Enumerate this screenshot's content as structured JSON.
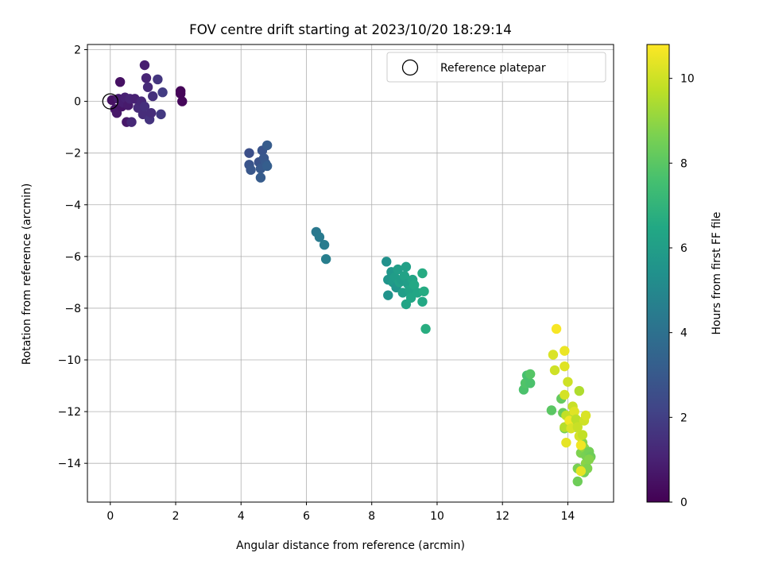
{
  "chart_data": {
    "type": "scatter",
    "title": "FOV centre drift starting at 2023/10/20 18:29:14",
    "xlabel": "Angular distance from reference (arcmin)",
    "ylabel": "Rotation from reference (arcmin)",
    "colorbar_label": "Hours from first FF file",
    "xlim": [
      -0.7,
      15.4
    ],
    "ylim": [
      -15.5,
      2.2
    ],
    "xticks": [
      0,
      2,
      4,
      6,
      8,
      10,
      12,
      14
    ],
    "yticks": [
      2,
      0,
      -2,
      -4,
      -6,
      -8,
      -10,
      -12,
      -14
    ],
    "colorbar_range": [
      0,
      10.8
    ],
    "colorbar_ticks": [
      0,
      2,
      4,
      6,
      8,
      10
    ],
    "colormap": "viridis",
    "grid": true,
    "legend": {
      "position": "top-right",
      "entries": [
        {
          "label": "Reference platepar",
          "marker": "open-circle"
        }
      ]
    },
    "reference_point": {
      "x": 0,
      "y": 0
    },
    "points": [
      {
        "x": 0.05,
        "y": 0.05,
        "c": 0.5
      },
      {
        "x": 0.15,
        "y": -0.3,
        "c": 0.6
      },
      {
        "x": 0.2,
        "y": -0.45,
        "c": 0.7
      },
      {
        "x": 0.25,
        "y": 0.1,
        "c": 0.8
      },
      {
        "x": 0.3,
        "y": 0.75,
        "c": 0.5
      },
      {
        "x": 0.35,
        "y": -0.2,
        "c": 0.6
      },
      {
        "x": 0.4,
        "y": -0.05,
        "c": 0.9
      },
      {
        "x": 0.45,
        "y": 0.15,
        "c": 1.0
      },
      {
        "x": 0.5,
        "y": -0.8,
        "c": 0.7
      },
      {
        "x": 0.55,
        "y": -0.15,
        "c": 0.8
      },
      {
        "x": 0.6,
        "y": 0.1,
        "c": 1.1
      },
      {
        "x": 0.65,
        "y": -0.8,
        "c": 1.2
      },
      {
        "x": 0.75,
        "y": 0.1,
        "c": 1.0
      },
      {
        "x": 0.85,
        "y": -0.25,
        "c": 1.3
      },
      {
        "x": 0.95,
        "y": 0.0,
        "c": 1.2
      },
      {
        "x": 1.0,
        "y": -0.5,
        "c": 1.4
      },
      {
        "x": 1.05,
        "y": 1.4,
        "c": 0.9
      },
      {
        "x": 1.05,
        "y": -0.2,
        "c": 1.5
      },
      {
        "x": 1.1,
        "y": 0.9,
        "c": 1.1
      },
      {
        "x": 1.15,
        "y": 0.55,
        "c": 1.3
      },
      {
        "x": 1.2,
        "y": -0.7,
        "c": 1.6
      },
      {
        "x": 1.25,
        "y": -0.45,
        "c": 1.4
      },
      {
        "x": 1.3,
        "y": 0.2,
        "c": 1.5
      },
      {
        "x": 1.45,
        "y": 0.85,
        "c": 1.7
      },
      {
        "x": 1.55,
        "y": -0.5,
        "c": 1.8
      },
      {
        "x": 1.6,
        "y": 0.35,
        "c": 1.9
      },
      {
        "x": 2.15,
        "y": 0.4,
        "c": 0.1
      },
      {
        "x": 2.2,
        "y": 0.0,
        "c": 0.2
      },
      {
        "x": 2.15,
        "y": 0.3,
        "c": 0.15
      },
      {
        "x": 4.25,
        "y": -2.0,
        "c": 2.6
      },
      {
        "x": 4.25,
        "y": -2.45,
        "c": 2.8
      },
      {
        "x": 4.3,
        "y": -2.65,
        "c": 2.9
      },
      {
        "x": 4.55,
        "y": -2.35,
        "c": 2.7
      },
      {
        "x": 4.6,
        "y": -2.6,
        "c": 3.0
      },
      {
        "x": 4.6,
        "y": -2.95,
        "c": 3.1
      },
      {
        "x": 4.65,
        "y": -1.9,
        "c": 2.8
      },
      {
        "x": 4.7,
        "y": -2.2,
        "c": 2.9
      },
      {
        "x": 4.75,
        "y": -2.4,
        "c": 3.0
      },
      {
        "x": 4.8,
        "y": -1.7,
        "c": 3.1
      },
      {
        "x": 4.8,
        "y": -2.5,
        "c": 3.2
      },
      {
        "x": 6.3,
        "y": -5.05,
        "c": 4.3
      },
      {
        "x": 6.4,
        "y": -5.25,
        "c": 4.4
      },
      {
        "x": 6.55,
        "y": -5.55,
        "c": 4.5
      },
      {
        "x": 6.6,
        "y": -6.1,
        "c": 4.6
      },
      {
        "x": 8.45,
        "y": -6.2,
        "c": 5.4
      },
      {
        "x": 8.5,
        "y": -6.9,
        "c": 5.6
      },
      {
        "x": 8.5,
        "y": -7.5,
        "c": 5.5
      },
      {
        "x": 8.6,
        "y": -6.6,
        "c": 5.7
      },
      {
        "x": 8.65,
        "y": -7.0,
        "c": 5.8
      },
      {
        "x": 8.7,
        "y": -6.8,
        "c": 5.9
      },
      {
        "x": 8.75,
        "y": -7.2,
        "c": 5.6
      },
      {
        "x": 8.8,
        "y": -6.5,
        "c": 6.0
      },
      {
        "x": 8.85,
        "y": -7.0,
        "c": 6.1
      },
      {
        "x": 8.9,
        "y": -6.9,
        "c": 5.9
      },
      {
        "x": 8.95,
        "y": -7.4,
        "c": 6.0
      },
      {
        "x": 9.0,
        "y": -6.75,
        "c": 6.2
      },
      {
        "x": 9.05,
        "y": -6.4,
        "c": 6.1
      },
      {
        "x": 9.05,
        "y": -7.85,
        "c": 6.3
      },
      {
        "x": 9.1,
        "y": -7.05,
        "c": 6.0
      },
      {
        "x": 9.15,
        "y": -7.3,
        "c": 6.2
      },
      {
        "x": 9.2,
        "y": -7.6,
        "c": 6.4
      },
      {
        "x": 9.25,
        "y": -6.9,
        "c": 6.3
      },
      {
        "x": 9.3,
        "y": -7.1,
        "c": 6.5
      },
      {
        "x": 9.4,
        "y": -7.4,
        "c": 6.4
      },
      {
        "x": 9.55,
        "y": -6.65,
        "c": 6.6
      },
      {
        "x": 9.55,
        "y": -7.75,
        "c": 6.5
      },
      {
        "x": 9.6,
        "y": -7.35,
        "c": 6.6
      },
      {
        "x": 9.65,
        "y": -8.8,
        "c": 6.7
      },
      {
        "x": 12.65,
        "y": -11.15,
        "c": 7.7
      },
      {
        "x": 12.7,
        "y": -10.9,
        "c": 7.8
      },
      {
        "x": 12.75,
        "y": -10.6,
        "c": 7.6
      },
      {
        "x": 12.85,
        "y": -10.9,
        "c": 7.7
      },
      {
        "x": 12.85,
        "y": -10.55,
        "c": 7.9
      },
      {
        "x": 13.5,
        "y": -11.95,
        "c": 8.0
      },
      {
        "x": 13.8,
        "y": -11.5,
        "c": 8.2
      },
      {
        "x": 13.85,
        "y": -12.05,
        "c": 8.3
      },
      {
        "x": 13.9,
        "y": -12.65,
        "c": 8.5
      },
      {
        "x": 14.1,
        "y": -12.4,
        "c": 8.6
      },
      {
        "x": 14.15,
        "y": -12.1,
        "c": 8.8
      },
      {
        "x": 14.25,
        "y": -12.6,
        "c": 8.9
      },
      {
        "x": 14.3,
        "y": -14.7,
        "c": 8.4
      },
      {
        "x": 14.3,
        "y": -14.2,
        "c": 8.6
      },
      {
        "x": 14.4,
        "y": -13.6,
        "c": 8.7
      },
      {
        "x": 14.45,
        "y": -13.2,
        "c": 8.8
      },
      {
        "x": 14.5,
        "y": -14.35,
        "c": 8.5
      },
      {
        "x": 14.5,
        "y": -13.4,
        "c": 9.0
      },
      {
        "x": 14.55,
        "y": -14.0,
        "c": 8.9
      },
      {
        "x": 14.55,
        "y": -13.7,
        "c": 8.6
      },
      {
        "x": 14.6,
        "y": -14.2,
        "c": 8.7
      },
      {
        "x": 14.65,
        "y": -13.55,
        "c": 8.5
      },
      {
        "x": 14.7,
        "y": -13.75,
        "c": 8.4
      },
      {
        "x": 14.65,
        "y": -13.85,
        "c": 8.8
      },
      {
        "x": 13.55,
        "y": -9.8,
        "c": 10.2
      },
      {
        "x": 13.6,
        "y": -10.4,
        "c": 10.0
      },
      {
        "x": 13.65,
        "y": -8.8,
        "c": 10.7
      },
      {
        "x": 13.9,
        "y": -9.65,
        "c": 10.5
      },
      {
        "x": 13.9,
        "y": -10.25,
        "c": 10.3
      },
      {
        "x": 13.9,
        "y": -11.35,
        "c": 10.1
      },
      {
        "x": 13.95,
        "y": -12.15,
        "c": 9.8
      },
      {
        "x": 13.9,
        "y": -12.6,
        "c": 9.6
      },
      {
        "x": 13.95,
        "y": -13.2,
        "c": 10.4
      },
      {
        "x": 14.0,
        "y": -10.85,
        "c": 10.0
      },
      {
        "x": 14.05,
        "y": -12.35,
        "c": 10.6
      },
      {
        "x": 14.1,
        "y": -12.65,
        "c": 10.2
      },
      {
        "x": 14.15,
        "y": -11.8,
        "c": 9.9
      },
      {
        "x": 14.2,
        "y": -12.0,
        "c": 10.3
      },
      {
        "x": 14.25,
        "y": -12.3,
        "c": 9.7
      },
      {
        "x": 14.35,
        "y": -11.2,
        "c": 9.5
      },
      {
        "x": 14.35,
        "y": -12.95,
        "c": 10.1
      },
      {
        "x": 14.4,
        "y": -13.3,
        "c": 10.6
      },
      {
        "x": 14.4,
        "y": -14.3,
        "c": 10.4
      },
      {
        "x": 14.45,
        "y": -12.9,
        "c": 9.8
      },
      {
        "x": 14.5,
        "y": -12.35,
        "c": 10.0
      },
      {
        "x": 14.55,
        "y": -12.15,
        "c": 10.2
      },
      {
        "x": 14.3,
        "y": -12.6,
        "c": 9.9
      }
    ]
  }
}
